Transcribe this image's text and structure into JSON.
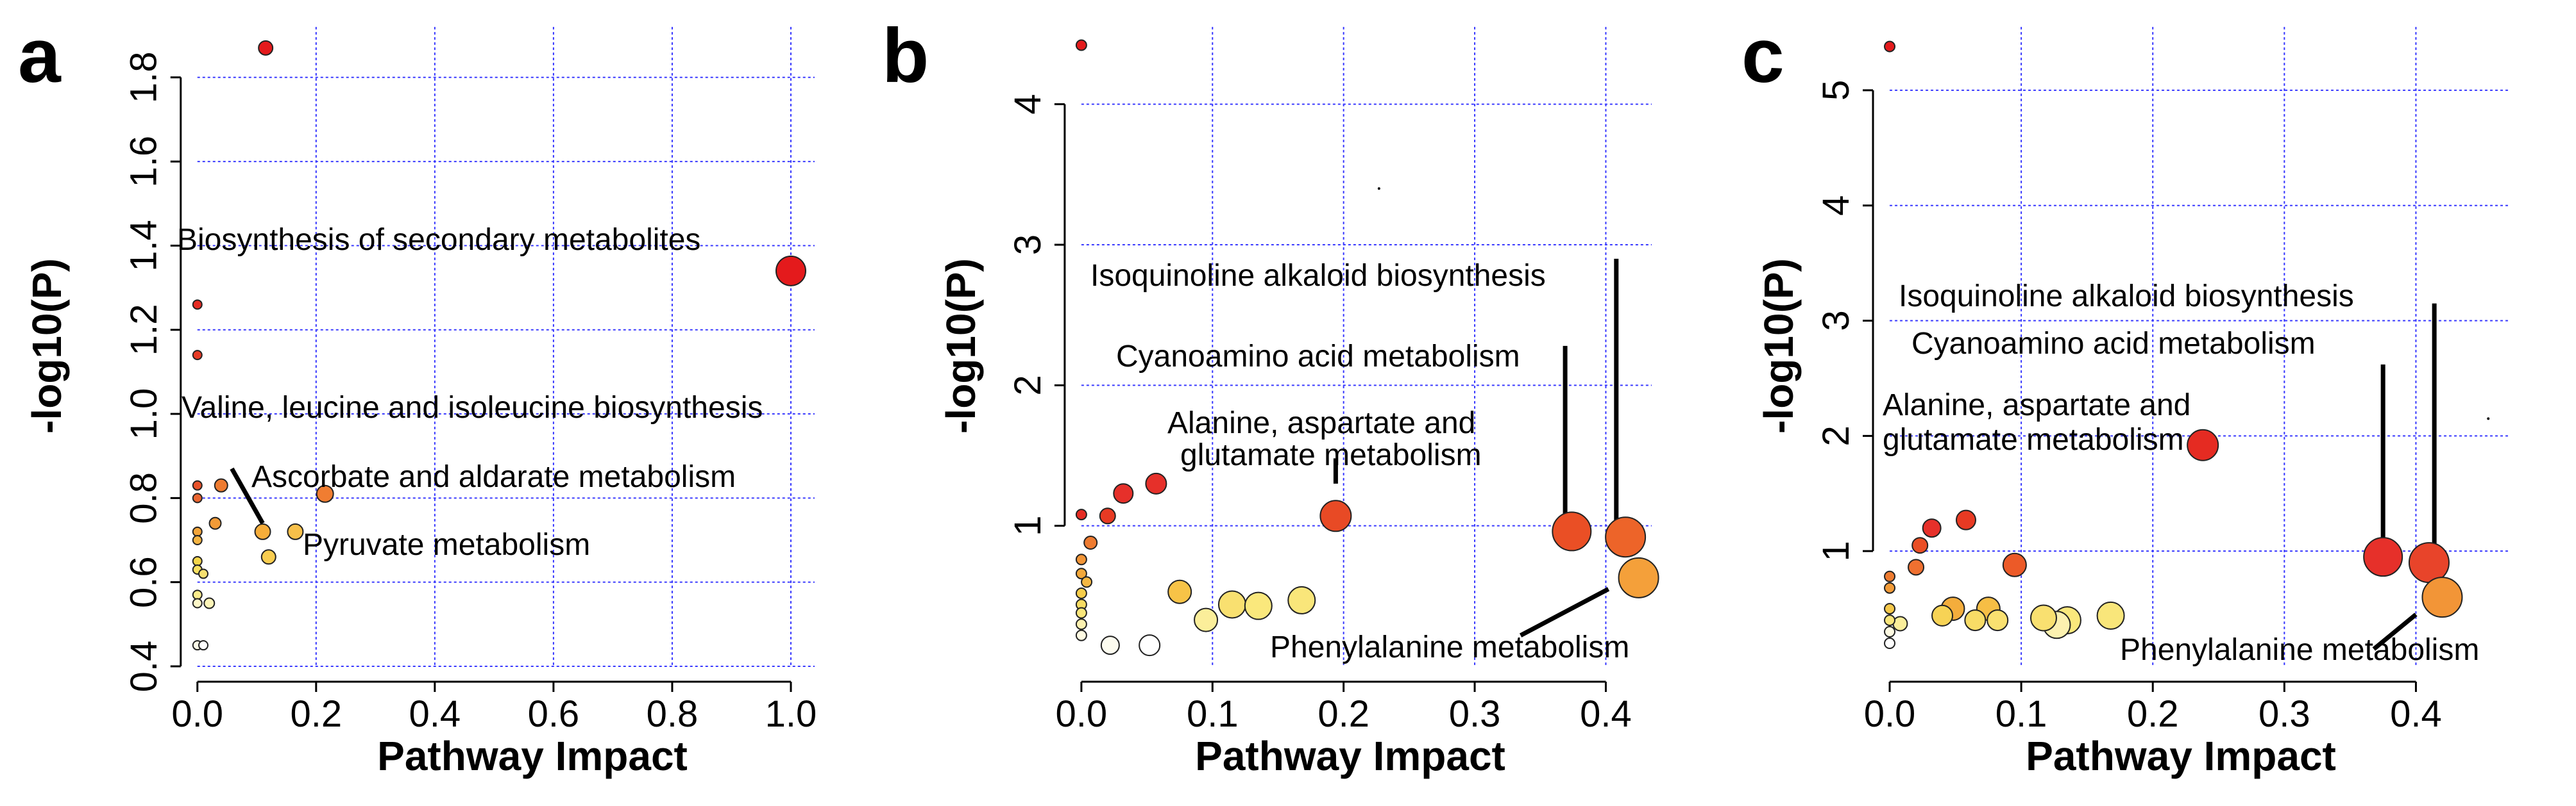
{
  "chart_data": [
    {
      "type": "scatter",
      "panel_label": "a",
      "xlabel": "Pathway Impact",
      "ylabel": "-log10(P)",
      "xlim": [
        -0.03,
        1.04
      ],
      "ylim": [
        0.4,
        1.92
      ],
      "x_ticks": [
        0.0,
        0.2,
        0.4,
        0.6,
        0.8,
        1.0
      ],
      "x_tick_labels": [
        "0.0",
        "0.2",
        "0.4",
        "0.6",
        "0.8",
        "1.0"
      ],
      "y_ticks": [
        0.4,
        0.6,
        0.8,
        1.0,
        1.2,
        1.4,
        1.6,
        1.8
      ],
      "y_tick_labels": [
        "0.4",
        "0.6",
        "0.8",
        "1.0",
        "1.2",
        "1.4",
        "1.6",
        "1.8"
      ],
      "grid": true,
      "points": [
        {
          "x": 0.115,
          "y": 1.87,
          "r": 11,
          "color": "#e41a1c"
        },
        {
          "x": 1.0,
          "y": 1.34,
          "r": 23,
          "color": "#e41a1c"
        },
        {
          "x": 0.0,
          "y": 1.26,
          "r": 7,
          "color": "#e52b22"
        },
        {
          "x": 0.0,
          "y": 1.14,
          "r": 7,
          "color": "#e63a25"
        },
        {
          "x": 0.0,
          "y": 0.83,
          "r": 7,
          "color": "#e8522a"
        },
        {
          "x": 0.0,
          "y": 0.8,
          "r": 7,
          "color": "#ea6530"
        },
        {
          "x": 0.04,
          "y": 0.83,
          "r": 10,
          "color": "#ee7b30"
        },
        {
          "x": 0.215,
          "y": 0.81,
          "r": 13,
          "color": "#f07d31"
        },
        {
          "x": 0.03,
          "y": 0.74,
          "r": 9,
          "color": "#f29b37"
        },
        {
          "x": 0.0,
          "y": 0.72,
          "r": 7,
          "color": "#f3a53a"
        },
        {
          "x": 0.0,
          "y": 0.7,
          "r": 7,
          "color": "#f4b442"
        },
        {
          "x": 0.11,
          "y": 0.72,
          "r": 12,
          "color": "#f5ad3a"
        },
        {
          "x": 0.165,
          "y": 0.72,
          "r": 12,
          "color": "#f7c04a"
        },
        {
          "x": 0.12,
          "y": 0.66,
          "r": 11,
          "color": "#f9cd4f"
        },
        {
          "x": 0.0,
          "y": 0.65,
          "r": 7,
          "color": "#f5d64a"
        },
        {
          "x": 0.0,
          "y": 0.63,
          "r": 7,
          "color": "#f8e060"
        },
        {
          "x": 0.01,
          "y": 0.62,
          "r": 7,
          "color": "#f7e070"
        },
        {
          "x": 0.0,
          "y": 0.57,
          "r": 7,
          "color": "#fbec8c"
        },
        {
          "x": 0.02,
          "y": 0.55,
          "r": 8,
          "color": "#fdf5b8"
        },
        {
          "x": 0.0,
          "y": 0.55,
          "r": 7,
          "color": "#fdf7c8"
        },
        {
          "x": 0.0,
          "y": 0.45,
          "r": 7,
          "color": "#fefbe8"
        },
        {
          "x": 0.01,
          "y": 0.45,
          "r": 7,
          "color": "#ffffff"
        }
      ],
      "annotations": [
        {
          "text": "Biosynthesis of secondary metabolites",
          "x": -0.01,
          "y": 1.41,
          "anchor": "start"
        },
        {
          "text": "Valine, leucine and isoleucine biosynthesis",
          "x": -0.01,
          "y": 1.02,
          "anchor": "start"
        },
        {
          "text": "Ascorbate and aldarate metabolism",
          "x": 0.1,
          "y": 0.9,
          "anchor": "start"
        },
        {
          "text": "Pyruvate metabolism",
          "x": 0.185,
          "y": 0.66,
          "anchor": "start"
        }
      ],
      "leaders": [
        {
          "x1": 0.058,
          "y1": 0.87,
          "x2": 0.11,
          "y2": 0.74
        }
      ]
    },
    {
      "type": "scatter",
      "panel_label": "b",
      "xlabel": "Pathway Impact",
      "ylabel": "-log10(P)",
      "xlim": [
        -0.02,
        0.435
      ],
      "ylim": [
        0,
        4.55
      ],
      "x_ticks": [
        0.0,
        0.1,
        0.2,
        0.3,
        0.4
      ],
      "x_tick_labels": [
        "0.0",
        "0.1",
        "0.2",
        "0.3",
        "0.4"
      ],
      "y_ticks": [
        1,
        2,
        3,
        4
      ],
      "y_tick_labels": [
        "1",
        "2",
        "3",
        "4"
      ],
      "grid": true,
      "points": [
        {
          "x": 0.0,
          "y": 4.42,
          "r": 8,
          "color": "#e41a1c"
        },
        {
          "x": 0.0,
          "y": 1.08,
          "r": 8,
          "color": "#e52b22"
        },
        {
          "x": 0.02,
          "y": 1.07,
          "r": 12,
          "color": "#e83a23"
        },
        {
          "x": 0.032,
          "y": 1.23,
          "r": 15,
          "color": "#e6302a"
        },
        {
          "x": 0.057,
          "y": 1.3,
          "r": 16,
          "color": "#e6302a"
        },
        {
          "x": 0.194,
          "y": 1.07,
          "r": 24,
          "color": "#e84a25"
        },
        {
          "x": 0.374,
          "y": 0.96,
          "r": 30,
          "color": "#ea4f25"
        },
        {
          "x": 0.415,
          "y": 0.92,
          "r": 31,
          "color": "#ed6429"
        },
        {
          "x": 0.425,
          "y": 0.63,
          "r": 31,
          "color": "#f4a03a"
        },
        {
          "x": 0.007,
          "y": 0.88,
          "r": 10,
          "color": "#ee7b30"
        },
        {
          "x": 0.0,
          "y": 0.76,
          "r": 8,
          "color": "#f29537"
        },
        {
          "x": 0.0,
          "y": 0.66,
          "r": 8,
          "color": "#f3a83a"
        },
        {
          "x": 0.004,
          "y": 0.6,
          "r": 8,
          "color": "#f5b843"
        },
        {
          "x": 0.075,
          "y": 0.53,
          "r": 18,
          "color": "#f7c347"
        },
        {
          "x": 0.0,
          "y": 0.52,
          "r": 8,
          "color": "#f6cd4a"
        },
        {
          "x": 0.0,
          "y": 0.44,
          "r": 8,
          "color": "#f7dc62"
        },
        {
          "x": 0.0,
          "y": 0.38,
          "r": 8,
          "color": "#f9e67b"
        },
        {
          "x": 0.115,
          "y": 0.44,
          "r": 21,
          "color": "#f9e070"
        },
        {
          "x": 0.135,
          "y": 0.43,
          "r": 21,
          "color": "#fae87c"
        },
        {
          "x": 0.168,
          "y": 0.47,
          "r": 21,
          "color": "#f9e67a"
        },
        {
          "x": 0.095,
          "y": 0.33,
          "r": 18,
          "color": "#fbee9a"
        },
        {
          "x": 0.0,
          "y": 0.3,
          "r": 8,
          "color": "#fcf1b0"
        },
        {
          "x": 0.0,
          "y": 0.22,
          "r": 8,
          "color": "#fefae2"
        },
        {
          "x": 0.022,
          "y": 0.15,
          "r": 14,
          "color": "#fdfcf0"
        },
        {
          "x": 0.052,
          "y": 0.15,
          "r": 16,
          "color": "#ffffff"
        },
        {
          "x": 0.227,
          "y": 3.4,
          "r": 2,
          "color": "#000000"
        }
      ],
      "annotations": [
        {
          "text": "Isoquinoline alkaloid biosynthesis",
          "x": 0.005,
          "y": 3.05,
          "anchor": "start"
        },
        {
          "text": "Cyanoamino acid metabolism",
          "x": 0.025,
          "y": 2.55,
          "anchor": "start"
        },
        {
          "text": "Alanine, aspartate and",
          "x": 0.066,
          "y": 1.96,
          "anchor": "start"
        },
        {
          "text": "glutamate metabolism",
          "x": 0.066,
          "y": 1.68,
          "anchor": "start"
        },
        {
          "text": "Phenylalanine metabolism",
          "x": 0.138,
          "y": 0.08,
          "anchor": "start"
        }
      ],
      "leaders": [
        {
          "x1": 0.408,
          "y1": 2.9,
          "x2": 0.408,
          "y2": 1.0
        },
        {
          "x1": 0.369,
          "y1": 2.28,
          "x2": 0.369,
          "y2": 1.05
        },
        {
          "x1": 0.194,
          "y1": 1.48,
          "x2": 0.194,
          "y2": 1.3
        },
        {
          "x1": 0.335,
          "y1": 0.22,
          "x2": 0.402,
          "y2": 0.55
        }
      ]
    },
    {
      "type": "scatter",
      "panel_label": "c",
      "xlabel": "Pathway Impact",
      "ylabel": "-log10(P)",
      "xlim": [
        -0.02,
        0.47
      ],
      "ylim": [
        0,
        5.55
      ],
      "x_ticks": [
        0.0,
        0.1,
        0.2,
        0.3,
        0.4
      ],
      "x_tick_labels": [
        "0.0",
        "0.1",
        "0.2",
        "0.3",
        "0.4"
      ],
      "y_ticks": [
        1,
        2,
        3,
        4,
        5
      ],
      "y_tick_labels": [
        "1",
        "2",
        "3",
        "4",
        "5"
      ],
      "grid": true,
      "points": [
        {
          "x": 0.0,
          "y": 5.38,
          "r": 8,
          "color": "#e41a1c"
        },
        {
          "x": 0.238,
          "y": 1.92,
          "r": 24,
          "color": "#e52b22"
        },
        {
          "x": 0.375,
          "y": 0.95,
          "r": 30,
          "color": "#e6302a"
        },
        {
          "x": 0.41,
          "y": 0.9,
          "r": 31,
          "color": "#e8442a"
        },
        {
          "x": 0.42,
          "y": 0.6,
          "r": 31,
          "color": "#f29537"
        },
        {
          "x": 0.032,
          "y": 1.2,
          "r": 14,
          "color": "#e6302a"
        },
        {
          "x": 0.058,
          "y": 1.27,
          "r": 15,
          "color": "#e83a23"
        },
        {
          "x": 0.023,
          "y": 1.05,
          "r": 12,
          "color": "#ea4f25"
        },
        {
          "x": 0.095,
          "y": 0.88,
          "r": 18,
          "color": "#ec5a28"
        },
        {
          "x": 0.0,
          "y": 0.78,
          "r": 8,
          "color": "#ee7b30"
        },
        {
          "x": 0.02,
          "y": 0.86,
          "r": 12,
          "color": "#ef7030"
        },
        {
          "x": 0.0,
          "y": 0.68,
          "r": 8,
          "color": "#f29b37"
        },
        {
          "x": 0.048,
          "y": 0.5,
          "r": 18,
          "color": "#f4ad3c"
        },
        {
          "x": 0.075,
          "y": 0.5,
          "r": 18,
          "color": "#f6be45"
        },
        {
          "x": 0.0,
          "y": 0.5,
          "r": 8,
          "color": "#f5c84a"
        },
        {
          "x": 0.04,
          "y": 0.44,
          "r": 16,
          "color": "#f7d355"
        },
        {
          "x": 0.065,
          "y": 0.4,
          "r": 16,
          "color": "#f8dc66"
        },
        {
          "x": 0.082,
          "y": 0.4,
          "r": 16,
          "color": "#f9e070"
        },
        {
          "x": 0.117,
          "y": 0.42,
          "r": 20,
          "color": "#f9e070"
        },
        {
          "x": 0.135,
          "y": 0.4,
          "r": 21,
          "color": "#fae87c"
        },
        {
          "x": 0.168,
          "y": 0.44,
          "r": 21,
          "color": "#f9e67a"
        },
        {
          "x": 0.127,
          "y": 0.36,
          "r": 21,
          "color": "#fcf1b0"
        },
        {
          "x": 0.0,
          "y": 0.4,
          "r": 8,
          "color": "#f9e67b"
        },
        {
          "x": 0.008,
          "y": 0.37,
          "r": 11,
          "color": "#fbee9a"
        },
        {
          "x": 0.0,
          "y": 0.3,
          "r": 8,
          "color": "#fefae2"
        },
        {
          "x": 0.0,
          "y": 0.2,
          "r": 8,
          "color": "#ffffff"
        },
        {
          "x": 0.455,
          "y": 2.15,
          "r": 2,
          "color": "#000000"
        }
      ],
      "annotations": [
        {
          "text": "Isoquinoline alkaloid biosynthesis",
          "x": 0.0,
          "y": 2.28,
          "anchor": "start"
        },
        {
          "text": "Cyanoamino acid metabolism",
          "x": 0.0,
          "y": 1.88,
          "anchor": "start"
        },
        {
          "text": "Alanine, aspartate and",
          "x": -0.005,
          "y": 2.28,
          "anchor": "start"
        },
        {
          "text": "glutamate metabolism",
          "x": -0.005,
          "y": 1.88,
          "anchor": "start"
        },
        {
          "text": "Phenylalanine metabolism",
          "x": 0.0,
          "y": 0.0,
          "anchor": "start"
        }
      ],
      "leaders": [
        {
          "x1": 0.414,
          "y1": 3.15,
          "x2": 0.414,
          "y2": 0.95
        },
        {
          "x1": 0.375,
          "y1": 2.62,
          "x2": 0.375,
          "y2": 1.05
        },
        {
          "x1": 0.368,
          "y1": 0.15,
          "x2": 0.4,
          "y2": 0.45
        }
      ]
    }
  ]
}
